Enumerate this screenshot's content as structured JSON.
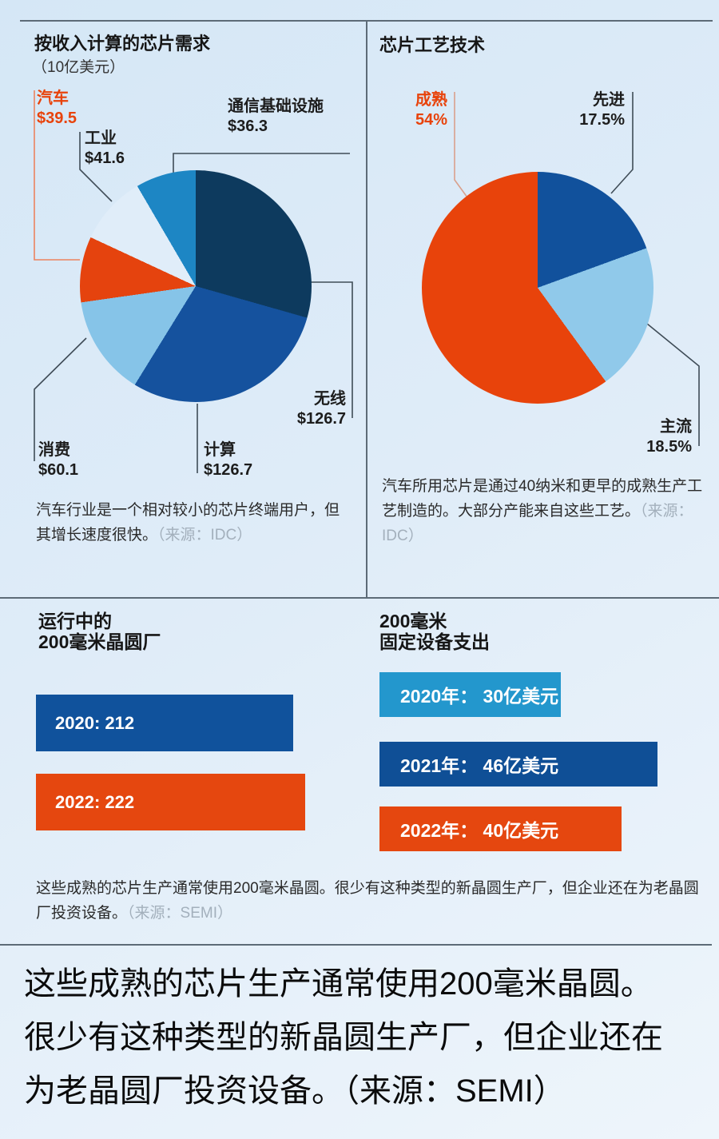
{
  "colors": {
    "accent_orange": "#e8430b",
    "dark_navy": "#0d3a5e",
    "blue": "#15529e",
    "light_blue": "#86c4e8",
    "pale_blue": "#e0edf9",
    "cyan_blue": "#1d86c4",
    "source_gray": "#a3b0bc",
    "grid_line": "#5d6b77"
  },
  "chart_data": [
    {
      "type": "pie",
      "title": "按收入计算的芯片需求",
      "subtitle": "（10亿美元）",
      "slices": [
        {
          "label": "无线",
          "value": 126.7,
          "display": "$126.7",
          "color": "#0d3a5e"
        },
        {
          "label": "计算",
          "value": 126.7,
          "display": "$126.7",
          "color": "#15529e"
        },
        {
          "label": "消费",
          "value": 60.1,
          "display": "$60.1",
          "color": "#86c4e8"
        },
        {
          "label": "汽车",
          "value": 39.5,
          "display": "$39.5",
          "color": "#e5430e"
        },
        {
          "label": "工业",
          "value": 41.6,
          "display": "$41.6",
          "color": "#e0edf9"
        },
        {
          "label": "通信基础设施",
          "value": 36.3,
          "display": "$36.3",
          "color": "#1d86c4"
        }
      ],
      "start": "top",
      "direction": "clockwise",
      "caption": "汽车行业是一个相对较小的芯片终端用户，但其增长速度很快。",
      "caption_source": "（来源：IDC）"
    },
    {
      "type": "pie",
      "title": "芯片工艺技术",
      "slices": [
        {
          "label": "先进",
          "value": 17.5,
          "display": "17.5%",
          "color": "#11519c"
        },
        {
          "label": "主流",
          "value": 18.5,
          "display": "18.5%",
          "color": "#90c9ea"
        },
        {
          "label": "成熟",
          "value": 54,
          "display": "54%",
          "color": "#e8430b"
        }
      ],
      "start": "top",
      "direction": "clockwise",
      "caption": "汽车所用芯片是通过40纳米和更早的成熟生产工艺制造的。大部分产能来自这些工艺。",
      "caption_source": "（来源：IDC）"
    },
    {
      "type": "bar",
      "title_lines": [
        "运行中的",
        "200毫米晶圆厂"
      ],
      "bars": [
        {
          "label": "2020: 212",
          "value": 212,
          "color": "#10529c"
        },
        {
          "label": "2022: 222",
          "value": 222,
          "color": "#e5470f"
        }
      ],
      "max_ref": 222
    },
    {
      "type": "bar",
      "title_lines": [
        "200毫米",
        "固定设备支出"
      ],
      "bars": [
        {
          "label": "2020年： 30亿美元",
          "value": 30,
          "color": "#2397cd"
        },
        {
          "label": "2021年： 46亿美元",
          "value": 46,
          "color": "#0f4f96"
        },
        {
          "label": "2022年： 40亿美元",
          "value": 40,
          "color": "#e5470f"
        }
      ],
      "max_ref": 46,
      "caption": "这些成熟的芯片生产通常使用200毫米晶圆。很少有这种类型的新晶圆生产厂，但企业还在为老晶圆厂投资设备。",
      "caption_source": "（来源：SEMI）"
    }
  ],
  "footer": {
    "lines": [
      "这些成熟的芯片生产通常使用200毫米晶圆。",
      "很少有这种类型的新晶圆生产厂，但企业还在",
      "为老晶圆厂投资设备。（来源：SEMI）"
    ]
  }
}
